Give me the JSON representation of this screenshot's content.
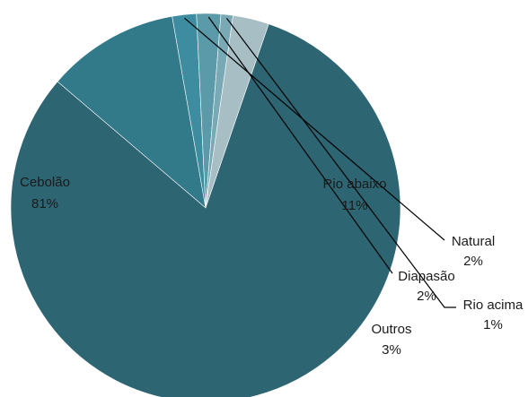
{
  "chart_data": {
    "type": "pie",
    "title": "",
    "slices": [
      {
        "label": "Cebolão",
        "value_label": "81%",
        "value": 81,
        "color": "#2e6573"
      },
      {
        "label": "Rio abaixo",
        "value_label": "11%",
        "value": 11,
        "color": "#327a89"
      },
      {
        "label": "Natural",
        "value_label": "2%",
        "value": 2,
        "color": "#3e8c9f"
      },
      {
        "label": "Diapasão",
        "value_label": "2%",
        "value": 2,
        "color": "#5b9aa9"
      },
      {
        "label": "Rio acima",
        "value_label": "1%",
        "value": 1,
        "color": "#7aa9b6"
      },
      {
        "label": "Outros",
        "value_label": "3%",
        "value": 3,
        "color": "#a7bec5"
      }
    ],
    "legend": "none"
  }
}
